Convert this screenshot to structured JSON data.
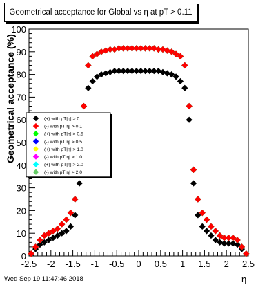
{
  "title": "Geometrical acceptance for Global vs   η at pT > 0.11",
  "footer": "Wed Sep 19 11:47:46 2018",
  "chart_data": {
    "type": "scatter",
    "title": "Geometrical acceptance for Global vs   η at pT > 0.11",
    "xlabel": "η",
    "ylabel": "Geometrical acceptance (%)",
    "xlim": [
      -2.5,
      2.5
    ],
    "ylim": [
      0,
      100
    ],
    "xticks": [
      "-2.5",
      "-2",
      "-1.5",
      "-1",
      "-0.5",
      "0",
      "0.5",
      "1",
      "1.5",
      "2",
      "2.5"
    ],
    "yticks": [
      "0",
      "10",
      "20",
      "30",
      "40",
      "50",
      "60",
      "70",
      "80",
      "90",
      "100"
    ],
    "grid": false,
    "legend_position": "left-middle",
    "x": [
      -2.45,
      -2.35,
      -2.25,
      -2.15,
      -2.05,
      -1.95,
      -1.85,
      -1.75,
      -1.65,
      -1.55,
      -1.45,
      -1.35,
      -1.25,
      -1.15,
      -1.05,
      -0.95,
      -0.85,
      -0.75,
      -0.65,
      -0.55,
      -0.45,
      -0.35,
      -0.25,
      -0.15,
      -0.05,
      0.05,
      0.15,
      0.25,
      0.35,
      0.45,
      0.55,
      0.65,
      0.75,
      0.85,
      0.95,
      1.05,
      1.15,
      1.25,
      1.35,
      1.45,
      1.55,
      1.65,
      1.75,
      1.85,
      1.95,
      2.05,
      2.15,
      2.25,
      2.35,
      2.45
    ],
    "series": [
      {
        "name": "(+) with pT|η| > 0",
        "color": "#000000",
        "values": [
          1,
          3,
          5,
          6,
          7,
          8,
          9,
          10,
          11,
          13,
          18,
          32,
          60,
          74,
          77,
          79,
          80,
          80.5,
          81,
          81.5,
          81.5,
          81.5,
          81.5,
          81.5,
          81.5,
          81.5,
          81.5,
          81.5,
          81.5,
          81.5,
          81,
          80.5,
          80,
          79,
          77,
          74,
          60,
          32,
          18,
          13,
          11,
          9,
          7,
          6,
          5.5,
          5.5,
          5.5,
          5,
          3,
          1
        ]
      },
      {
        "name": "(-) with pT|η| > 0.1",
        "color": "#ff0000",
        "values": [
          1,
          4,
          7,
          9,
          10,
          11,
          12,
          14,
          16,
          19,
          25,
          38,
          66,
          84,
          88,
          89,
          90,
          90.5,
          91,
          91,
          91.5,
          91.5,
          91.5,
          91.5,
          91.5,
          91.5,
          91.5,
          91.5,
          91.5,
          91,
          91,
          90.5,
          90,
          89,
          88,
          84,
          66,
          38,
          25,
          19,
          16,
          13,
          11,
          9,
          8,
          8,
          8,
          7,
          4,
          1
        ]
      },
      {
        "name": "(+) with pT|η| > 0.5",
        "color": "#00ff00",
        "values": [
          1,
          4,
          7,
          9,
          10,
          11,
          12,
          14,
          16,
          19,
          25,
          38,
          66,
          84,
          88,
          89,
          90,
          90.5,
          91,
          91,
          91.5,
          91.5,
          91.5,
          91.5,
          91.5,
          91.5,
          91.5,
          91.5,
          91.5,
          91,
          91,
          90.5,
          90,
          89,
          88,
          84,
          66,
          38,
          25,
          19,
          16,
          13,
          11,
          9,
          8,
          8,
          8,
          7,
          4,
          1
        ]
      },
      {
        "name": "(-) with pT|η| > 0.5",
        "color": "#0000ff",
        "values": [
          1,
          4,
          7,
          9,
          10,
          11,
          12,
          14,
          16,
          19,
          25,
          38,
          66,
          84,
          88,
          89,
          90,
          90.5,
          91,
          91,
          91.5,
          91.5,
          91.5,
          91.5,
          91.5,
          91.5,
          91.5,
          91.5,
          91.5,
          91,
          91,
          90.5,
          90,
          89,
          88,
          84,
          66,
          38,
          25,
          19,
          16,
          13,
          11,
          9,
          8,
          8,
          8,
          7,
          4,
          1
        ]
      },
      {
        "name": "(+) with pT|η| > 1.0",
        "color": "#ffff00",
        "values": [
          1,
          4,
          7,
          9,
          10,
          11,
          12,
          14,
          16,
          19,
          25,
          38,
          66,
          84,
          88,
          89,
          90,
          90.5,
          91,
          91,
          91.5,
          91.5,
          91.5,
          91.5,
          91.5,
          91.5,
          91.5,
          91.5,
          91.5,
          91,
          91,
          90.5,
          90,
          89,
          88,
          84,
          66,
          38,
          25,
          19,
          16,
          13,
          11,
          9,
          8,
          8,
          8,
          7,
          4,
          1
        ]
      },
      {
        "name": "(-) with pT|η| > 1.0",
        "color": "#ff00ff",
        "values": [
          1,
          4,
          7,
          9,
          10,
          11,
          12,
          14,
          16,
          19,
          25,
          38,
          66,
          84,
          88,
          89,
          90,
          90.5,
          91,
          91,
          91.5,
          91.5,
          91.5,
          91.5,
          91.5,
          91.5,
          91.5,
          91.5,
          91.5,
          91,
          91,
          90.5,
          90,
          89,
          88,
          84,
          66,
          38,
          25,
          19,
          16,
          13,
          11,
          9,
          8,
          8,
          8,
          7,
          4,
          1
        ]
      },
      {
        "name": "(+) with pT|η| > 2.0",
        "color": "#00ffff",
        "values": [
          1,
          4,
          7,
          9,
          10,
          11,
          12,
          14,
          16,
          19,
          25,
          38,
          66,
          84,
          88,
          89,
          90,
          90.5,
          91,
          91,
          91.5,
          91.5,
          91.5,
          91.5,
          91.5,
          91.5,
          91.5,
          91.5,
          91.5,
          91,
          91,
          90.5,
          90,
          89,
          88,
          84,
          66,
          38,
          25,
          19,
          16,
          13,
          11,
          9,
          8,
          8,
          8,
          7,
          4,
          1
        ]
      },
      {
        "name": "(-) with pT|η| > 2.0",
        "color": "#66cc66",
        "values": [
          1,
          4,
          7,
          9,
          10,
          11,
          12,
          14,
          16,
          19,
          25,
          38,
          66,
          84,
          88,
          89,
          90,
          90.5,
          91,
          91,
          91.5,
          91.5,
          91.5,
          91.5,
          91.5,
          91.5,
          91.5,
          91.5,
          91.5,
          91,
          91,
          90.5,
          90,
          89,
          88,
          84,
          66,
          38,
          25,
          19,
          16,
          13,
          11,
          9,
          8,
          8,
          8,
          7,
          4,
          1
        ]
      }
    ]
  }
}
